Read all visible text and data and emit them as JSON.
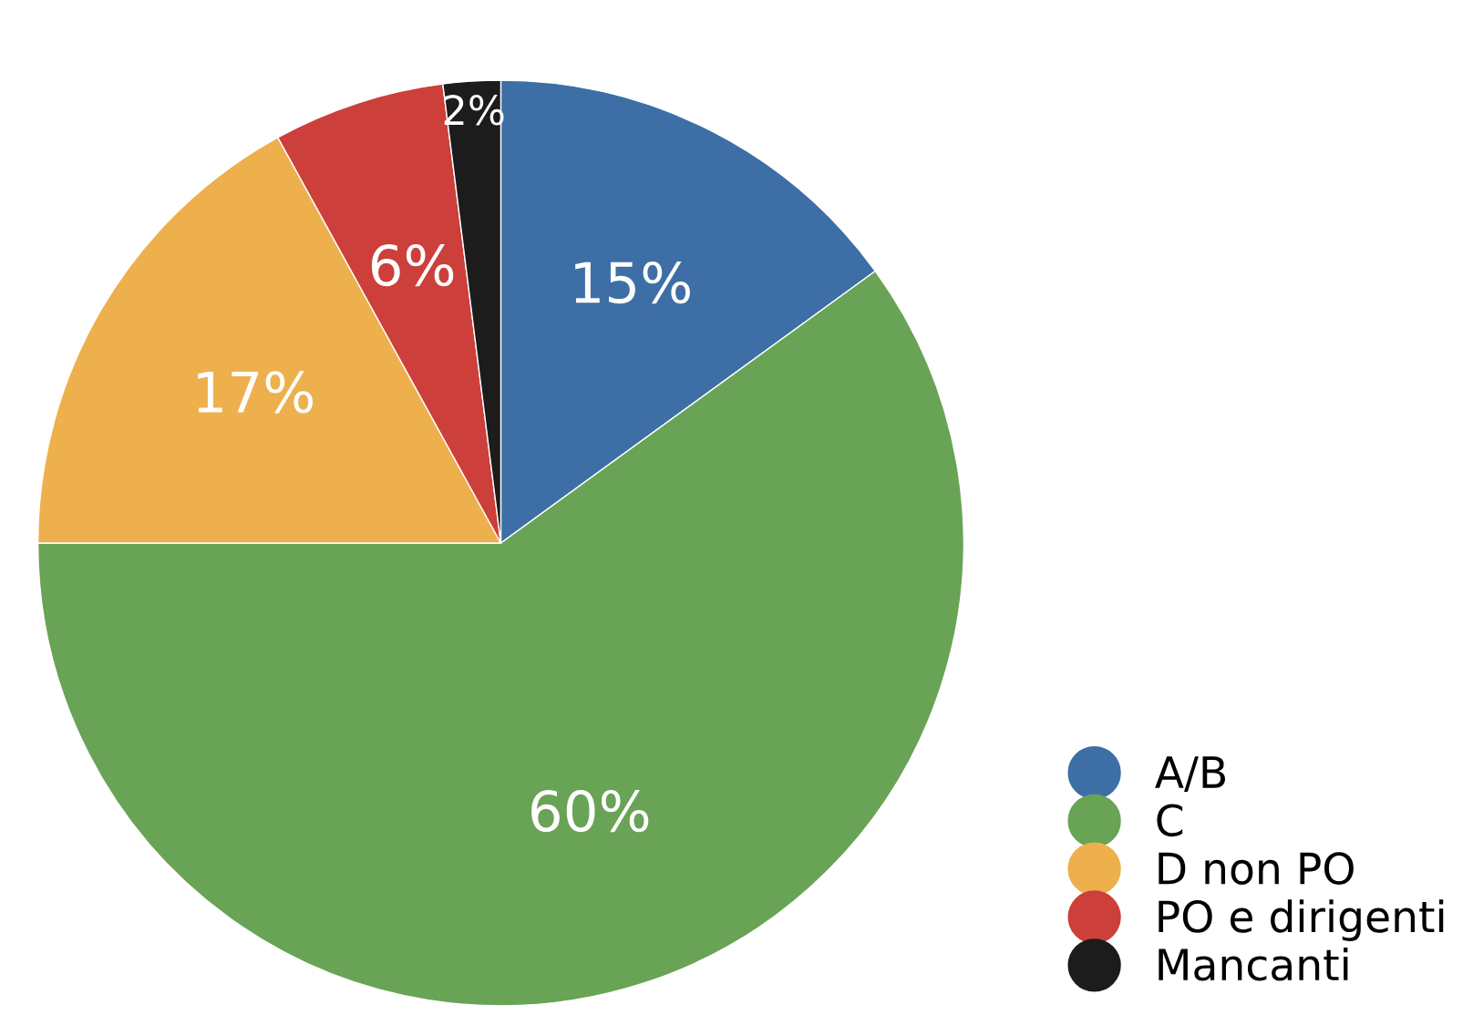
{
  "chart_data": {
    "type": "pie",
    "categories": [
      "A/B",
      "C",
      "D non PO",
      "PO e dirigenti",
      "Mancanti"
    ],
    "values": [
      15,
      60,
      17,
      6,
      2
    ],
    "colors": [
      "#3d6fa6",
      "#69a355",
      "#edb04c",
      "#cc3f3a",
      "#1c1c1c"
    ],
    "value_labels": [
      "15%",
      "60%",
      "17%",
      "6%",
      "2%"
    ],
    "legend": "bottom right"
  }
}
